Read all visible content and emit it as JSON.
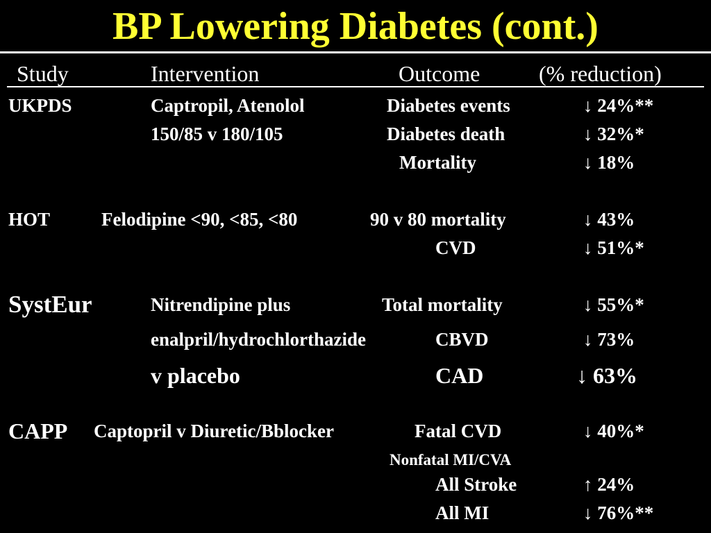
{
  "title": "BP Lowering Diabetes (cont.)",
  "header": {
    "study": "Study",
    "intervention": "Intervention",
    "outcome": "Outcome",
    "reduction": "(% reduction)"
  },
  "rows": {
    "ukpds_study": "UKPDS",
    "ukpds_int1": "Captropil, Atenolol",
    "ukpds_int2": "150/85 v 180/105",
    "ukpds_o1": "Diabetes events",
    "ukpds_r1": "↓ 24%**",
    "ukpds_o2": "Diabetes death",
    "ukpds_r2": "↓ 32%*",
    "ukpds_o3": "Mortality",
    "ukpds_r3": "↓ 18%",
    "hot_study": "HOT",
    "hot_int": "Felodipine <90, <85, <80",
    "hot_o1": "90 v 80 mortality",
    "hot_r1": "↓ 43%",
    "hot_o2": "CVD",
    "hot_r2": "↓ 51%*",
    "syst_study": "SystEur",
    "syst_int1": "Nitrendipine plus",
    "syst_int2": "enalpril/hydrochlorthazide",
    "syst_int3": "v placebo",
    "syst_o1": "Total mortality",
    "syst_r1": "↓ 55%*",
    "syst_o2": "CBVD",
    "syst_r2": "↓ 73%",
    "syst_o3": "CAD",
    "syst_r3": "↓ 63%",
    "capp_study": "CAPP",
    "capp_int": "Captopril v Diuretic/Bblocker",
    "capp_o1": "Fatal CVD",
    "capp_r1": "↓ 40%*",
    "capp_o2": "Nonfatal MI/CVA",
    "capp_o3": "All Stroke",
    "capp_r3": "↑ 24%",
    "capp_o4": "All MI",
    "capp_r4": "↓ 76%**"
  },
  "colors": {
    "background": "#000000",
    "title": "#ffff33",
    "text": "#ffffff"
  }
}
